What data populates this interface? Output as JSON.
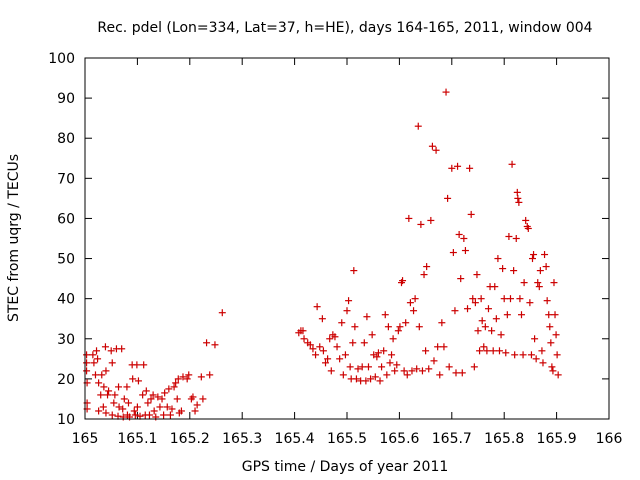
{
  "chart_data": {
    "type": "scatter",
    "title": "Rec. pdel (Lon=334, Lat=37, h=HE), days 164-165, 2011, window 004",
    "xlabel": "GPS time / Days of year 2011",
    "ylabel": "STEC from uqrg / TECUs",
    "xlim": [
      165,
      166
    ],
    "ylim": [
      10,
      100
    ],
    "xticks": [
      "165",
      "165.1",
      "165.2",
      "165.3",
      "165.4",
      "165.5",
      "165.6",
      "165.7",
      "165.8",
      "165.9",
      "166"
    ],
    "yticks": [
      "10",
      "20",
      "30",
      "40",
      "50",
      "60",
      "70",
      "80",
      "90",
      "100"
    ],
    "grid": false,
    "legend": "none",
    "marker": "+",
    "color": "#cc0000",
    "points": [
      [
        165.003,
        26
      ],
      [
        165.003,
        24
      ],
      [
        165.003,
        22
      ],
      [
        165.004,
        19
      ],
      [
        165.004,
        14
      ],
      [
        165.004,
        12.5
      ],
      [
        165.015,
        26
      ],
      [
        165.017,
        24
      ],
      [
        165.02,
        21
      ],
      [
        165.022,
        27
      ],
      [
        165.024,
        25
      ],
      [
        165.026,
        19
      ],
      [
        165.026,
        12
      ],
      [
        165.03,
        16
      ],
      [
        165.032,
        21
      ],
      [
        165.035,
        13
      ],
      [
        165.036,
        18
      ],
      [
        165.039,
        28
      ],
      [
        165.04,
        11.5
      ],
      [
        165.04,
        22
      ],
      [
        165.043,
        16
      ],
      [
        165.045,
        17
      ],
      [
        165.05,
        27
      ],
      [
        165.052,
        24
      ],
      [
        165.052,
        11
      ],
      [
        165.055,
        14
      ],
      [
        165.057,
        16
      ],
      [
        165.06,
        27.5
      ],
      [
        165.063,
        10.7
      ],
      [
        165.064,
        18
      ],
      [
        165.065,
        13
      ],
      [
        165.07,
        27.5
      ],
      [
        165.072,
        12.5
      ],
      [
        165.073,
        10.5
      ],
      [
        165.075,
        15
      ],
      [
        165.08,
        18
      ],
      [
        165.081,
        11
      ],
      [
        165.083,
        14
      ],
      [
        165.085,
        10.5
      ],
      [
        165.09,
        23.5
      ],
      [
        165.091,
        20
      ],
      [
        165.094,
        12
      ],
      [
        165.096,
        11
      ],
      [
        165.099,
        23.5
      ],
      [
        165.1,
        13
      ],
      [
        165.102,
        19.5
      ],
      [
        165.105,
        10.7
      ],
      [
        165.11,
        16
      ],
      [
        165.112,
        23.5
      ],
      [
        165.115,
        11
      ],
      [
        165.117,
        17
      ],
      [
        165.12,
        14
      ],
      [
        165.123,
        11
      ],
      [
        165.126,
        15
      ],
      [
        165.13,
        16
      ],
      [
        165.132,
        12
      ],
      [
        165.135,
        10.5
      ],
      [
        165.139,
        15.5
      ],
      [
        165.143,
        13
      ],
      [
        165.147,
        15
      ],
      [
        165.15,
        11
      ],
      [
        165.152,
        16.5
      ],
      [
        165.157,
        13
      ],
      [
        165.16,
        17.5
      ],
      [
        165.163,
        11
      ],
      [
        165.166,
        12.5
      ],
      [
        165.17,
        18
      ],
      [
        165.173,
        19
      ],
      [
        165.176,
        15
      ],
      [
        165.178,
        20
      ],
      [
        165.18,
        11.5
      ],
      [
        165.184,
        12
      ],
      [
        165.187,
        20.5
      ],
      [
        165.195,
        20
      ],
      [
        165.198,
        21
      ],
      [
        165.203,
        15
      ],
      [
        165.206,
        15.5
      ],
      [
        165.21,
        12
      ],
      [
        165.214,
        13.5
      ],
      [
        165.222,
        20.5
      ],
      [
        165.225,
        15
      ],
      [
        165.232,
        29
      ],
      [
        165.238,
        21
      ],
      [
        165.248,
        28.5
      ],
      [
        165.262,
        36.5
      ],
      [
        165.408,
        31.5
      ],
      [
        165.412,
        32
      ],
      [
        165.416,
        32
      ],
      [
        165.418,
        30
      ],
      [
        165.425,
        29
      ],
      [
        165.43,
        28.5
      ],
      [
        165.435,
        27.5
      ],
      [
        165.44,
        26
      ],
      [
        165.443,
        38
      ],
      [
        165.448,
        28
      ],
      [
        165.453,
        35
      ],
      [
        165.455,
        27
      ],
      [
        165.459,
        24
      ],
      [
        165.463,
        25
      ],
      [
        165.467,
        30
      ],
      [
        165.47,
        22
      ],
      [
        165.473,
        31
      ],
      [
        165.477,
        30.5
      ],
      [
        165.481,
        28
      ],
      [
        165.486,
        25
      ],
      [
        165.49,
        34
      ],
      [
        165.493,
        21
      ],
      [
        165.497,
        26
      ],
      [
        165.5,
        37
      ],
      [
        165.503,
        39.5
      ],
      [
        165.506,
        23
      ],
      [
        165.508,
        20
      ],
      [
        165.511,
        29
      ],
      [
        165.513,
        47
      ],
      [
        165.515,
        33
      ],
      [
        165.518,
        20
      ],
      [
        165.521,
        22.5
      ],
      [
        165.526,
        19.5
      ],
      [
        165.529,
        23
      ],
      [
        165.533,
        29
      ],
      [
        165.536,
        19.5
      ],
      [
        165.538,
        35.5
      ],
      [
        165.541,
        23
      ],
      [
        165.545,
        20
      ],
      [
        165.548,
        31
      ],
      [
        165.551,
        26
      ],
      [
        165.554,
        20.5
      ],
      [
        165.557,
        25.5
      ],
      [
        165.56,
        26.5
      ],
      [
        165.563,
        19.5
      ],
      [
        165.566,
        23
      ],
      [
        165.57,
        27
      ],
      [
        165.573,
        36
      ],
      [
        165.576,
        21
      ],
      [
        165.579,
        33
      ],
      [
        165.582,
        24
      ],
      [
        165.585,
        26
      ],
      [
        165.588,
        30
      ],
      [
        165.591,
        22
      ],
      [
        165.595,
        23.5
      ],
      [
        165.598,
        32
      ],
      [
        165.601,
        33
      ],
      [
        165.604,
        44
      ],
      [
        165.606,
        44.5
      ],
      [
        165.609,
        22
      ],
      [
        165.612,
        34
      ],
      [
        165.615,
        21
      ],
      [
        165.618,
        60
      ],
      [
        165.621,
        39
      ],
      [
        165.624,
        22
      ],
      [
        165.627,
        37
      ],
      [
        165.63,
        40
      ],
      [
        165.633,
        22.5
      ],
      [
        165.636,
        83
      ],
      [
        165.638,
        33
      ],
      [
        165.641,
        58.5
      ],
      [
        165.644,
        22
      ],
      [
        165.647,
        46
      ],
      [
        165.65,
        27
      ],
      [
        165.652,
        48
      ],
      [
        165.656,
        22.5
      ],
      [
        165.66,
        59.5
      ],
      [
        165.663,
        78
      ],
      [
        165.666,
        24.5
      ],
      [
        165.67,
        77
      ],
      [
        165.673,
        28
      ],
      [
        165.677,
        21
      ],
      [
        165.681,
        34
      ],
      [
        165.685,
        28
      ],
      [
        165.689,
        91.5
      ],
      [
        165.692,
        65
      ],
      [
        165.695,
        23
      ],
      [
        165.7,
        72.5
      ],
      [
        165.703,
        51.5
      ],
      [
        165.706,
        37
      ],
      [
        165.708,
        21.5
      ],
      [
        165.711,
        73
      ],
      [
        165.714,
        56
      ],
      [
        165.717,
        45
      ],
      [
        165.72,
        21.5
      ],
      [
        165.723,
        55
      ],
      [
        165.726,
        52
      ],
      [
        165.73,
        37.5
      ],
      [
        165.734,
        72.5
      ],
      [
        165.737,
        61
      ],
      [
        165.74,
        40
      ],
      [
        165.743,
        23
      ],
      [
        165.745,
        39
      ],
      [
        165.748,
        46
      ],
      [
        165.75,
        32
      ],
      [
        165.753,
        27
      ],
      [
        165.756,
        40
      ],
      [
        165.758,
        34.5
      ],
      [
        165.761,
        28
      ],
      [
        165.764,
        33
      ],
      [
        165.767,
        27
      ],
      [
        165.77,
        37.5
      ],
      [
        165.773,
        43
      ],
      [
        165.776,
        32
      ],
      [
        165.779,
        27
      ],
      [
        165.782,
        43
      ],
      [
        165.785,
        35
      ],
      [
        165.788,
        50
      ],
      [
        165.791,
        27
      ],
      [
        165.794,
        31
      ],
      [
        165.797,
        47.5
      ],
      [
        165.8,
        40
      ],
      [
        165.803,
        26.5
      ],
      [
        165.806,
        36
      ],
      [
        165.809,
        55.5
      ],
      [
        165.812,
        40
      ],
      [
        165.815,
        73.5
      ],
      [
        165.818,
        47
      ],
      [
        165.82,
        26
      ],
      [
        165.823,
        55
      ],
      [
        165.825,
        66.5
      ],
      [
        165.826,
        65
      ],
      [
        165.828,
        64
      ],
      [
        165.83,
        40
      ],
      [
        165.833,
        36
      ],
      [
        165.836,
        26
      ],
      [
        165.838,
        44
      ],
      [
        165.841,
        59.5
      ],
      [
        165.844,
        58
      ],
      [
        165.846,
        57.5
      ],
      [
        165.849,
        39
      ],
      [
        165.852,
        26
      ],
      [
        165.854,
        50
      ],
      [
        165.856,
        51
      ],
      [
        165.858,
        30
      ],
      [
        165.861,
        25
      ],
      [
        165.864,
        44
      ],
      [
        165.867,
        43
      ],
      [
        165.869,
        47
      ],
      [
        165.872,
        27
      ],
      [
        165.874,
        24
      ],
      [
        165.877,
        51
      ],
      [
        165.88,
        48
      ],
      [
        165.882,
        39.5
      ],
      [
        165.885,
        36
      ],
      [
        165.887,
        33
      ],
      [
        165.889,
        29
      ],
      [
        165.891,
        23
      ],
      [
        165.893,
        22
      ],
      [
        165.895,
        44
      ],
      [
        165.897,
        36
      ],
      [
        165.899,
        31
      ],
      [
        165.901,
        26
      ],
      [
        165.903,
        21
      ]
    ]
  }
}
